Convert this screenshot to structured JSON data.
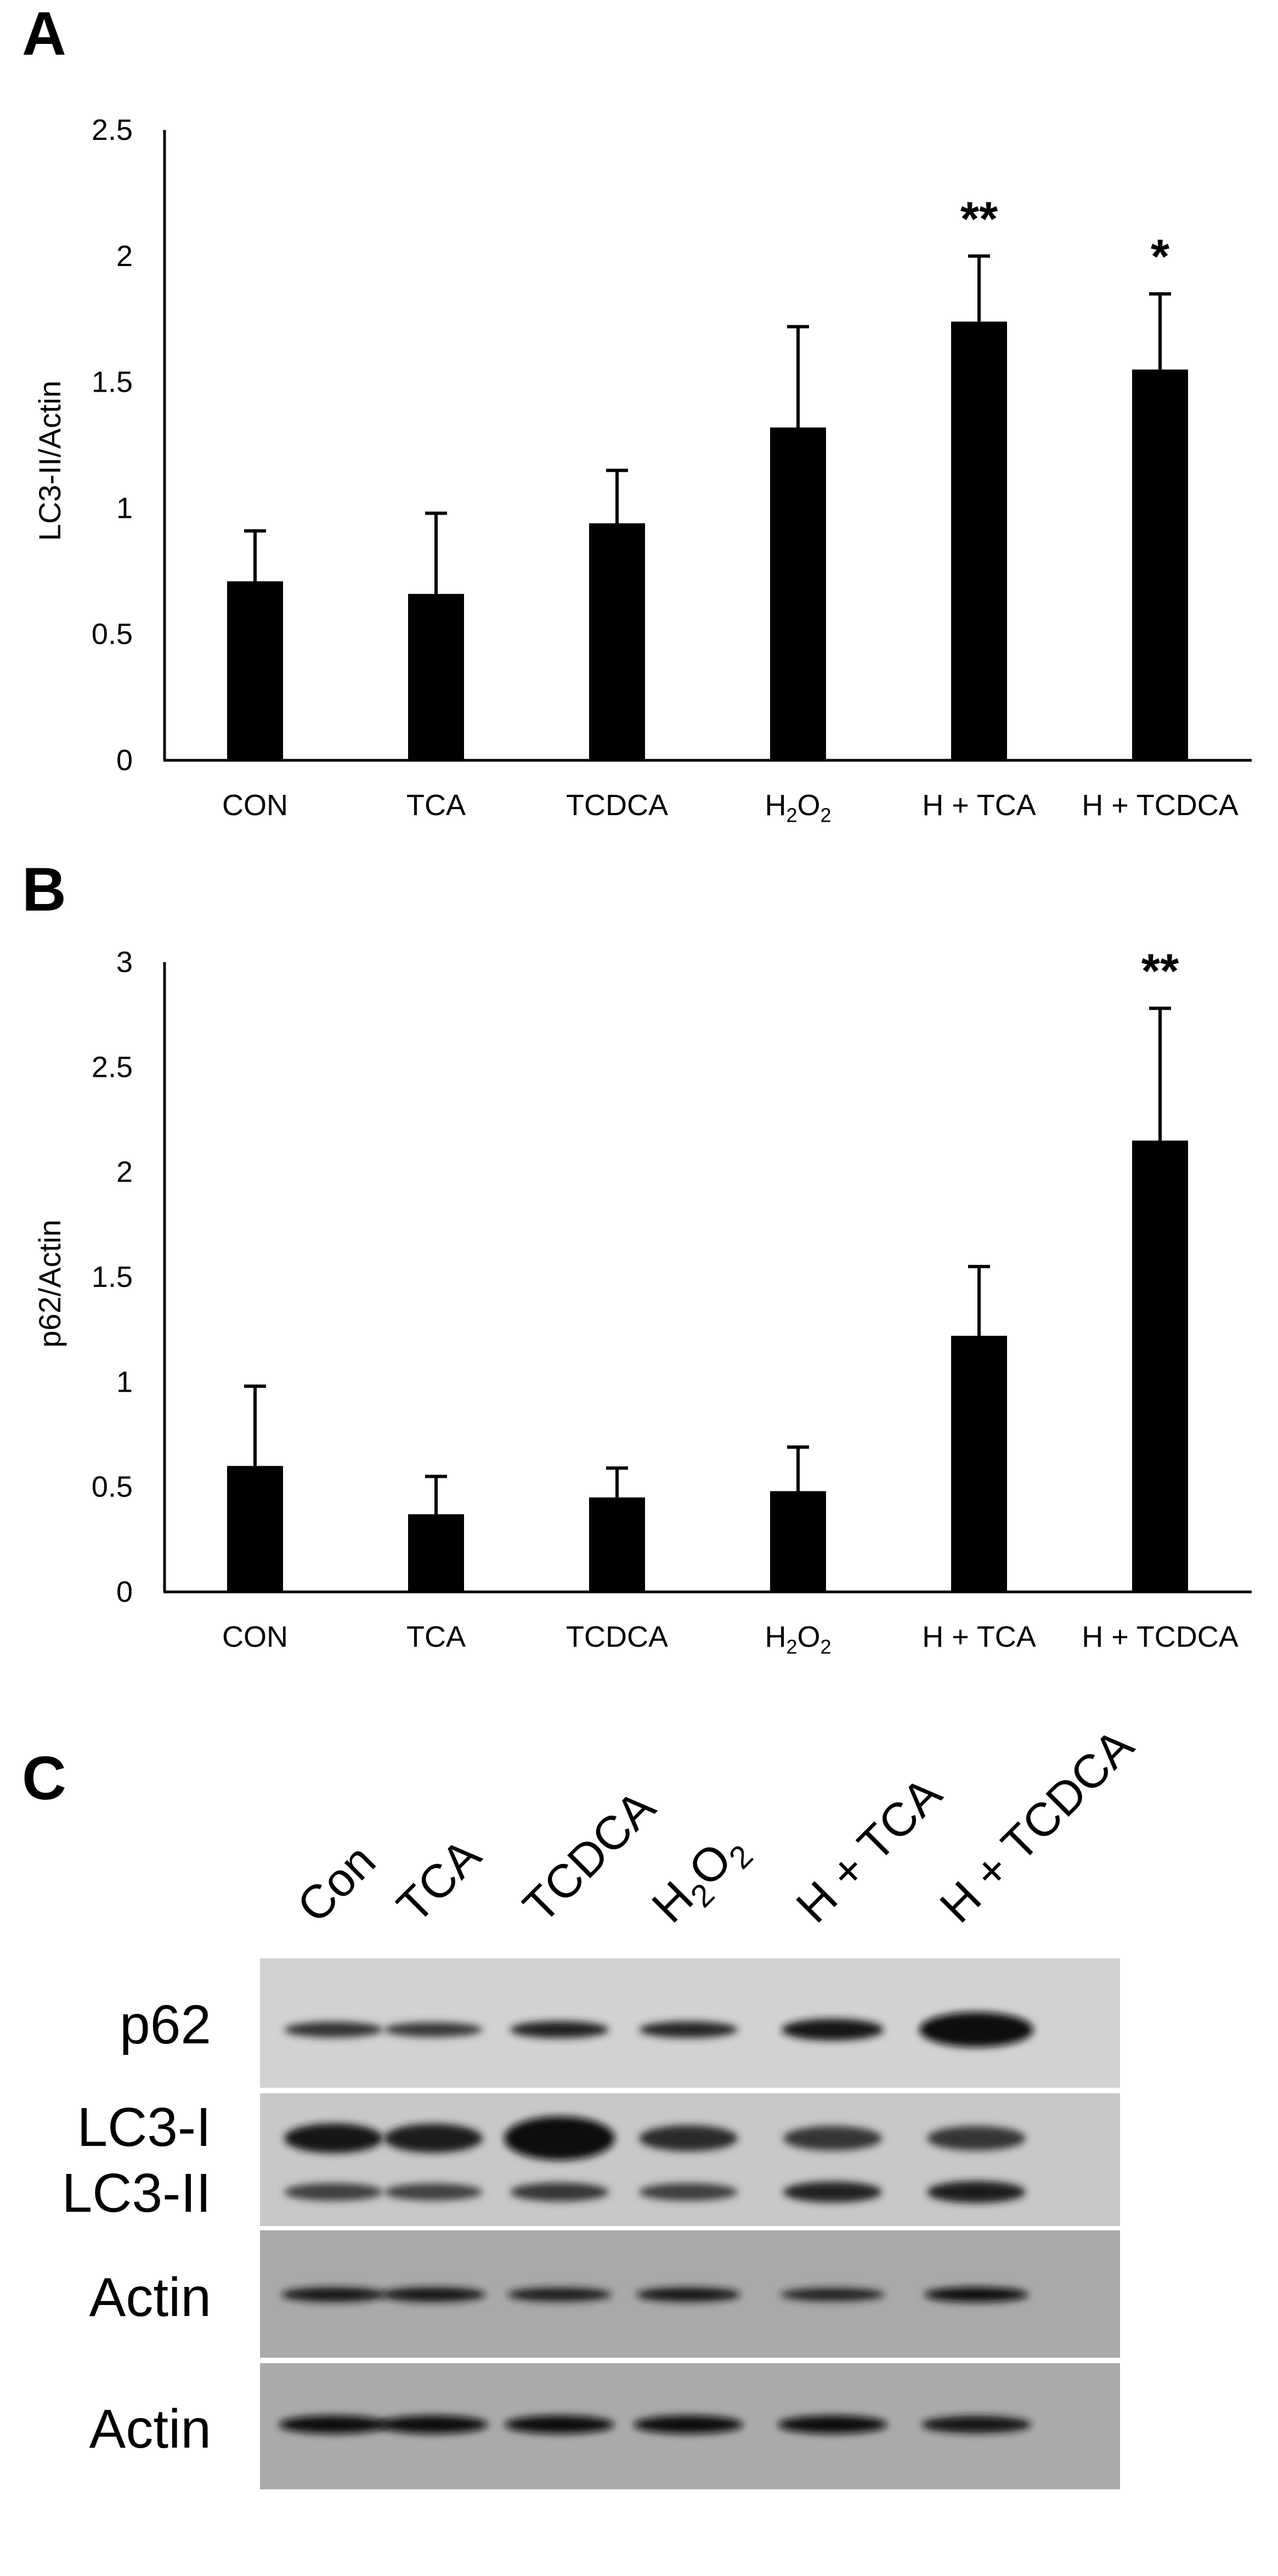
{
  "chart_data": [
    {
      "panel": "A",
      "type": "bar",
      "ylabel": "LC3-II/Actin",
      "ylim": [
        0,
        2.5
      ],
      "yticks": [
        "0",
        "0.5",
        "1",
        "1.5",
        "2",
        "2.5"
      ],
      "categories": [
        "CON",
        "TCA",
        "TCDCA",
        "H2O2",
        "H + TCA",
        "H + TCDCA"
      ],
      "values": [
        0.71,
        0.66,
        0.94,
        1.32,
        1.74,
        1.55
      ],
      "errors": [
        0.2,
        0.32,
        0.21,
        0.4,
        0.26,
        0.3
      ],
      "significance": [
        "",
        "",
        "",
        "",
        "**",
        "*"
      ]
    },
    {
      "panel": "B",
      "type": "bar",
      "ylabel": "p62/Actin",
      "ylim": [
        0,
        3
      ],
      "yticks": [
        "0",
        "0.5",
        "1",
        "1.5",
        "2",
        "2.5",
        "3"
      ],
      "categories": [
        "CON",
        "TCA",
        "TCDCA",
        "H2O2",
        "H + TCA",
        "H + TCDCA"
      ],
      "values": [
        0.6,
        0.37,
        0.45,
        0.48,
        1.22,
        2.15
      ],
      "errors": [
        0.38,
        0.18,
        0.14,
        0.21,
        0.33,
        0.63
      ],
      "significance": [
        "",
        "",
        "",
        "",
        "",
        "**"
      ]
    }
  ],
  "blot": {
    "panel": "C",
    "lanes": [
      "Con",
      "TCA",
      "TCDCA",
      "H2O2",
      "H + TCA",
      "H + TCDCA"
    ],
    "rows": [
      "p62",
      "LC3-I",
      "LC3-II",
      "Actin",
      "Actin"
    ],
    "band_intensity": {
      "p62": [
        0.55,
        0.45,
        0.7,
        0.65,
        0.85,
        1.0
      ],
      "LC3-I": [
        0.85,
        0.8,
        1.0,
        0.6,
        0.5,
        0.5
      ],
      "LC3-II": [
        0.4,
        0.35,
        0.5,
        0.4,
        0.7,
        0.8
      ],
      "Actin1": [
        0.9,
        0.9,
        0.8,
        0.85,
        0.7,
        0.95
      ],
      "Actin2": [
        0.95,
        0.95,
        0.95,
        0.95,
        0.95,
        0.85
      ]
    }
  }
}
